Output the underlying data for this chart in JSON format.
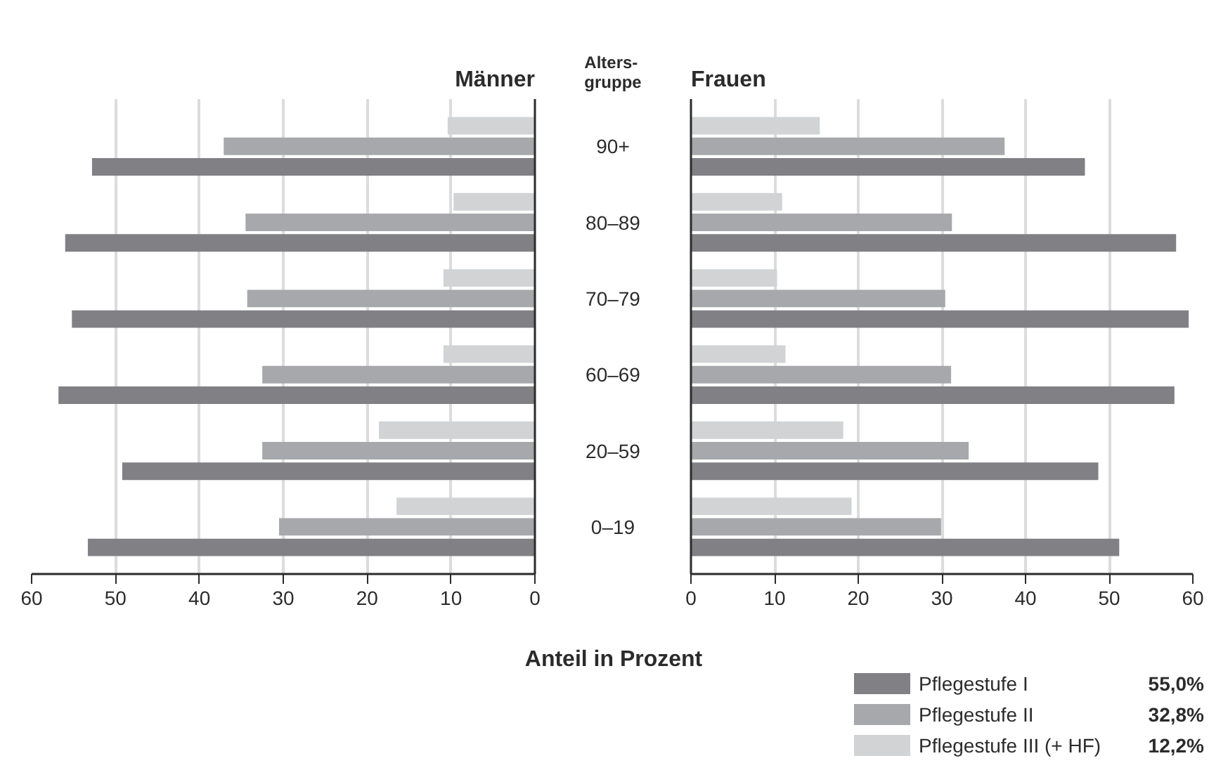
{
  "chart_data": [
    {
      "type": "bar",
      "orientation": "horizontal",
      "title": "Männer",
      "ylabel": "Alters-\ngruppe",
      "xlabel": "Anteil in Prozent",
      "categories": [
        "90+",
        "80–89",
        "70–79",
        "60–69",
        "20–59",
        "0–19"
      ],
      "series": [
        {
          "color": "#808085",
          "values": [
            52.8,
            56.0,
            55.2,
            56.8,
            49.2,
            53.3
          ]
        },
        {
          "color": "#a7a8ab",
          "values": [
            37.1,
            34.5,
            34.3,
            32.5,
            32.5,
            30.5
          ]
        },
        {
          "color": "#d2d3d5",
          "values": [
            10.4,
            9.7,
            10.9,
            10.9,
            18.6,
            16.5
          ]
        }
      ],
      "xlim": [
        60,
        0
      ],
      "xticks": [
        60,
        50,
        40,
        30,
        20,
        10,
        0
      ],
      "grid": "x"
    },
    {
      "type": "bar",
      "orientation": "horizontal",
      "title": "Frauen",
      "categories": [
        "90+",
        "80–89",
        "70–79",
        "60–69",
        "20–59",
        "0–19"
      ],
      "series": [
        {
          "name": "Pflegestufe I",
          "color": "#808085",
          "values": [
            47.1,
            58.0,
            59.5,
            57.8,
            48.7,
            51.2
          ]
        },
        {
          "name": "Pflegestufe II",
          "color": "#a7a8ab",
          "values": [
            37.5,
            31.2,
            30.4,
            31.1,
            33.2,
            29.9
          ]
        },
        {
          "name": "Pflegestufe III (+ HF)",
          "color": "#d2d3d5",
          "values": [
            15.4,
            10.9,
            10.3,
            11.3,
            18.2,
            19.2
          ]
        }
      ],
      "annotations": [
        "55,0%",
        "32,8%",
        "12,2%"
      ],
      "xlim": [
        0,
        60
      ],
      "xticks": [
        0,
        10,
        20,
        30,
        40,
        50,
        60
      ],
      "grid": "x",
      "tick_labels": "x",
      "legend": "bottom right"
    }
  ]
}
